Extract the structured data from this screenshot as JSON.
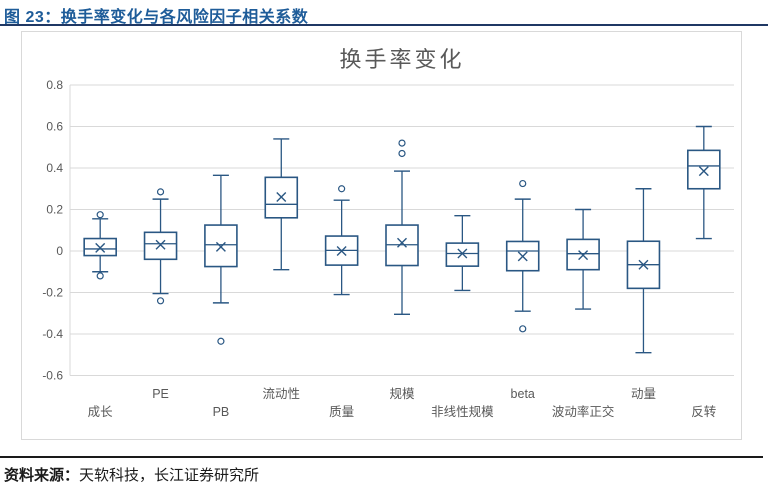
{
  "page": {
    "figure_title": "图 23：换手率变化与各风险因子相关系数",
    "source_label": "资料来源：",
    "source_text": "天软科技，长江证券研究所"
  },
  "colors": {
    "figure_title": "#1e5c99",
    "top_rule": "#1f3864",
    "bottom_rule": "#1a1a1a",
    "box_stroke": "#2a5783",
    "gridline": "#d9d9d9",
    "axis_text": "#595959",
    "chart_title": "#595959",
    "frame_border": "#d9d9d9"
  },
  "chart_data": {
    "type": "boxplot",
    "title": "换手率变化",
    "categories": [
      "成长",
      "PE",
      "PB",
      "流动性",
      "质量",
      "规模",
      "非线性规模",
      "beta",
      "波动率正交",
      "动量",
      "反转"
    ],
    "ylim": [
      -0.6,
      0.8
    ],
    "yticks": [
      0.8,
      0.6,
      0.4,
      0.2,
      0,
      -0.2,
      -0.4,
      -0.6
    ],
    "grid": true,
    "legend": "none",
    "series": [
      {
        "name": "成长",
        "low": -0.1,
        "q1": -0.022,
        "median": 0.01,
        "q3": 0.06,
        "high": 0.155,
        "mean": 0.015,
        "outliers": [
          0.175,
          -0.12
        ]
      },
      {
        "name": "PE",
        "low": -0.205,
        "q1": -0.04,
        "median": 0.035,
        "q3": 0.09,
        "high": 0.25,
        "mean": 0.03,
        "outliers": [
          0.285,
          -0.24
        ]
      },
      {
        "name": "PB",
        "low": -0.25,
        "q1": -0.075,
        "median": 0.03,
        "q3": 0.125,
        "high": 0.365,
        "mean": 0.02,
        "outliers": [
          -0.435
        ]
      },
      {
        "name": "流动性",
        "low": -0.09,
        "q1": 0.16,
        "median": 0.225,
        "q3": 0.355,
        "high": 0.54,
        "mean": 0.26,
        "outliers": []
      },
      {
        "name": "质量",
        "low": -0.21,
        "q1": -0.068,
        "median": 0.003,
        "q3": 0.072,
        "high": 0.245,
        "mean": 0.0,
        "outliers": [
          0.3
        ]
      },
      {
        "name": "规模",
        "low": -0.305,
        "q1": -0.07,
        "median": 0.03,
        "q3": 0.125,
        "high": 0.385,
        "mean": 0.04,
        "outliers": [
          0.52,
          0.47
        ]
      },
      {
        "name": "非线性规模",
        "low": -0.19,
        "q1": -0.073,
        "median": -0.012,
        "q3": 0.038,
        "high": 0.17,
        "mean": -0.012,
        "outliers": []
      },
      {
        "name": "beta",
        "low": -0.29,
        "q1": -0.095,
        "median": 0.0,
        "q3": 0.046,
        "high": 0.25,
        "mean": -0.026,
        "outliers": [
          0.325,
          -0.375
        ]
      },
      {
        "name": "波动率正交",
        "low": -0.28,
        "q1": -0.09,
        "median": -0.013,
        "q3": 0.056,
        "high": 0.2,
        "mean": -0.02,
        "outliers": []
      },
      {
        "name": "动量",
        "low": -0.49,
        "q1": -0.18,
        "median": -0.066,
        "q3": 0.047,
        "high": 0.3,
        "mean": -0.066,
        "outliers": []
      },
      {
        "name": "反转",
        "low": 0.06,
        "q1": 0.3,
        "median": 0.41,
        "q3": 0.485,
        "high": 0.6,
        "mean": 0.385,
        "outliers": []
      }
    ]
  }
}
